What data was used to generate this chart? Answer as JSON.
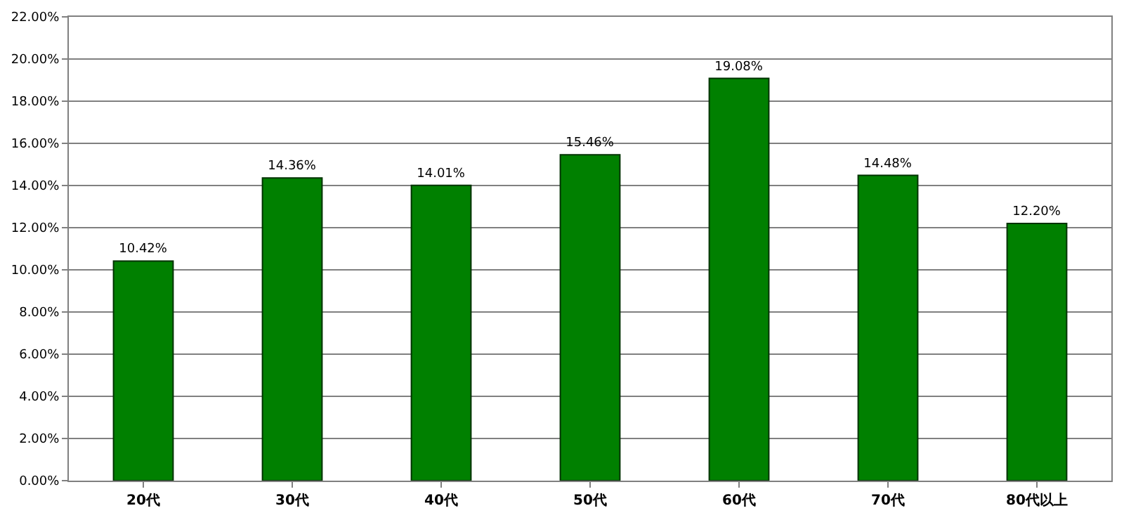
{
  "chart_data": {
    "type": "bar",
    "categories": [
      "20代",
      "30代",
      "40代",
      "50代",
      "60代",
      "70代",
      "80代以上"
    ],
    "values": [
      10.42,
      14.36,
      14.01,
      15.46,
      19.08,
      14.48,
      12.2
    ],
    "value_labels": [
      "10.42%",
      "14.36%",
      "14.01%",
      "15.46%",
      "19.08%",
      "14.48%",
      "12.20%"
    ],
    "color": "#008000",
    "ylim": [
      0,
      22
    ],
    "yticks": [
      {
        "value": 0,
        "label": "0.00%"
      },
      {
        "value": 2,
        "label": "2.00%"
      },
      {
        "value": 4,
        "label": "4.00%"
      },
      {
        "value": 6,
        "label": "6.00%"
      },
      {
        "value": 8,
        "label": "8.00%"
      },
      {
        "value": 10,
        "label": "10.00%"
      },
      {
        "value": 12,
        "label": "12.00%"
      },
      {
        "value": 14,
        "label": "14.00%"
      },
      {
        "value": 16,
        "label": "16.00%"
      },
      {
        "value": 18,
        "label": "18.00%"
      },
      {
        "value": 20,
        "label": "20.00%"
      },
      {
        "value": 22,
        "label": "22.00%"
      }
    ],
    "grid": "y",
    "legend": false
  }
}
